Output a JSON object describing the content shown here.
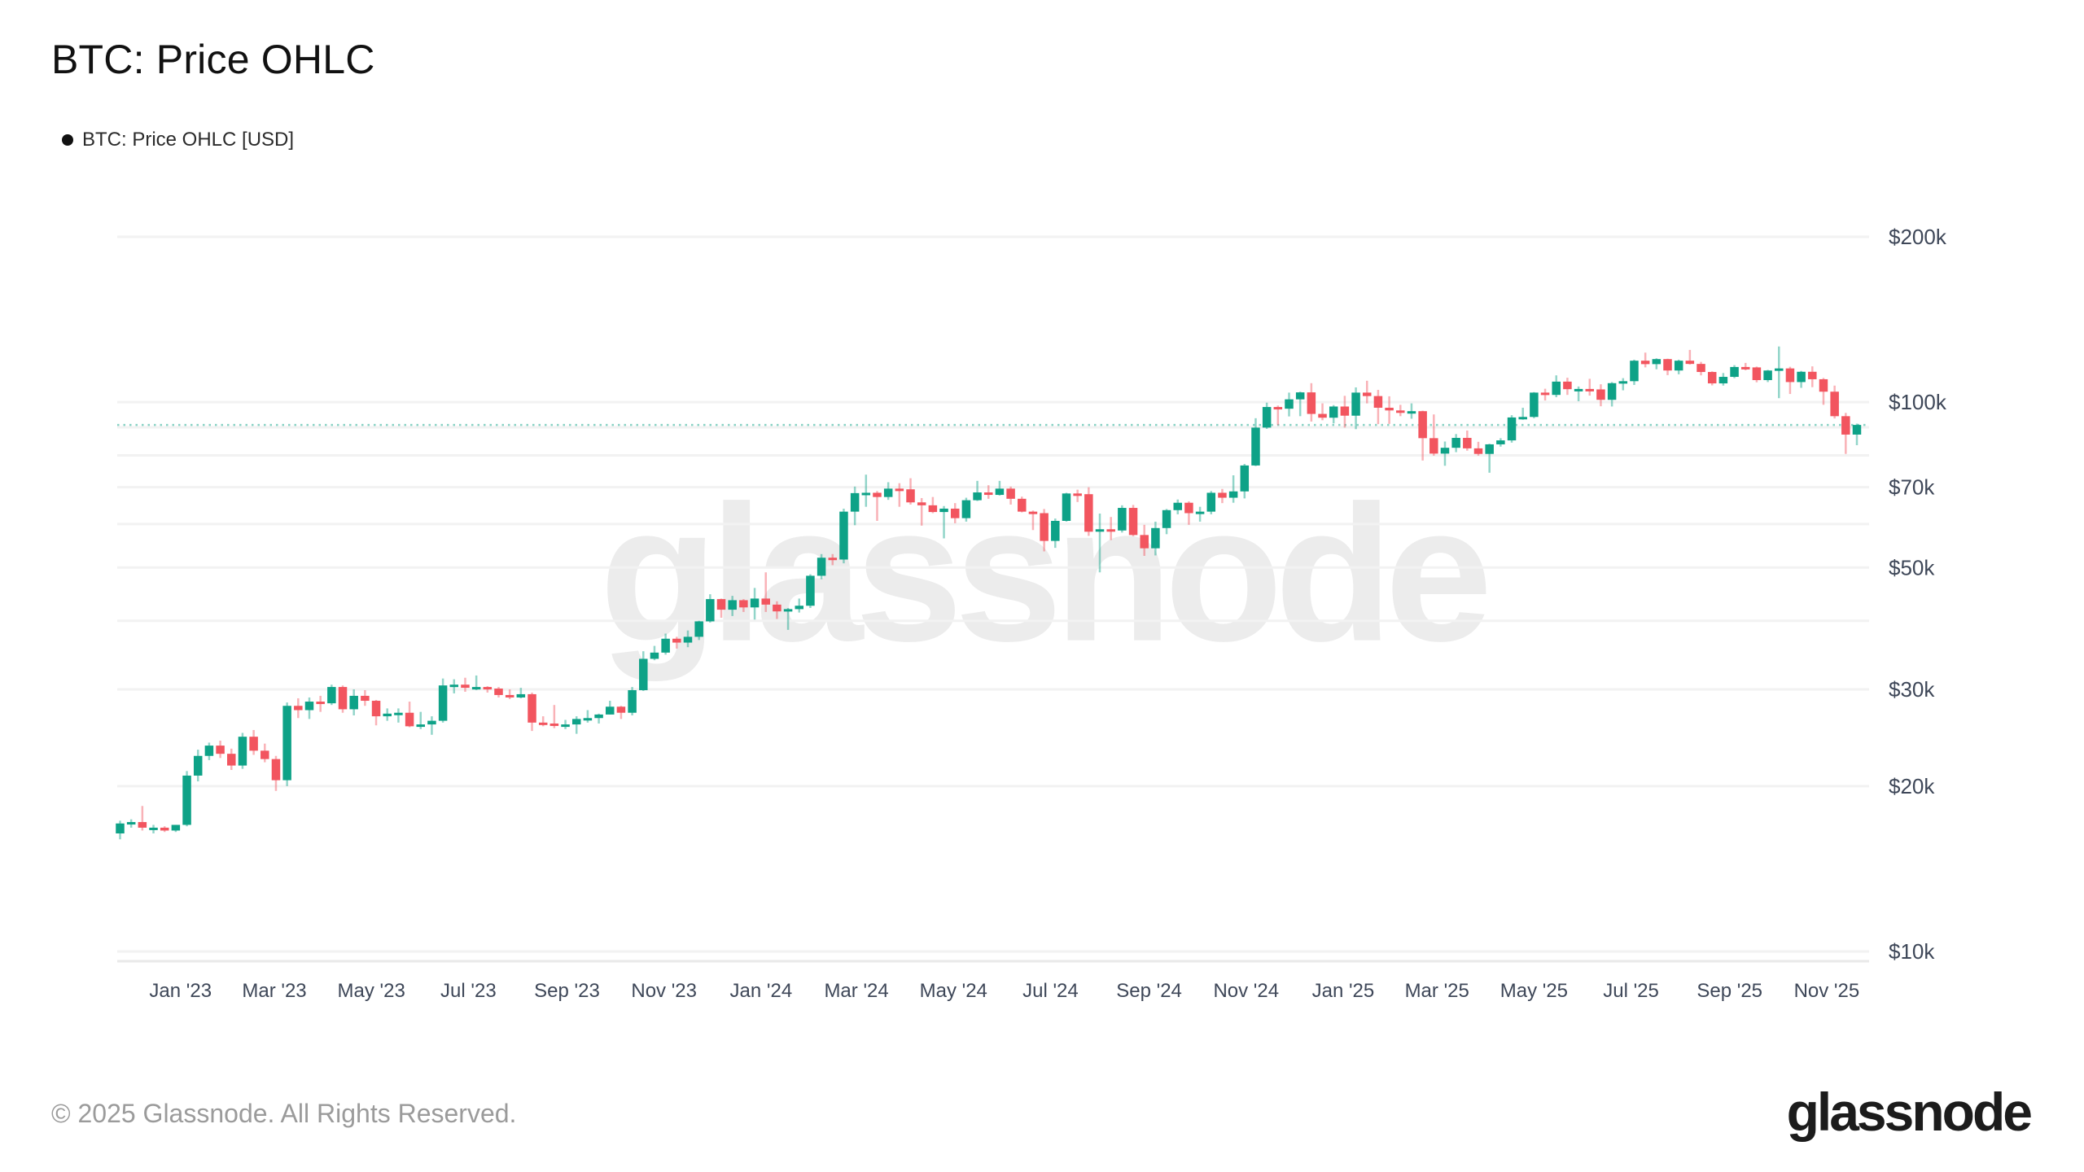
{
  "header": {
    "title": "BTC: Price OHLC"
  },
  "legend": {
    "label": "BTC: Price OHLC [USD]",
    "marker_color": "#111111"
  },
  "watermark": {
    "text": "glassnode"
  },
  "footer": {
    "copyright": "© 2025 Glassnode. All Rights Reserved.",
    "logo": "glassnode"
  },
  "chart_data": {
    "type": "candlestick",
    "title": "BTC: Price OHLC",
    "series_name": "BTC: Price OHLC [USD]",
    "interval": "weekly",
    "unit": "USD thousands",
    "y_axis": {
      "scale": "log",
      "ylim_thousands": [
        10,
        200
      ],
      "labeled_ticks": [
        {
          "value": 200,
          "label": "$200k"
        },
        {
          "value": 100,
          "label": "$100k"
        },
        {
          "value": 70,
          "label": "$70k"
        },
        {
          "value": 50,
          "label": "$50k"
        },
        {
          "value": 30,
          "label": "$30k"
        },
        {
          "value": 20,
          "label": "$20k"
        },
        {
          "value": 10,
          "label": "$10k"
        }
      ],
      "gridline_values": [
        10,
        20,
        30,
        40,
        50,
        60,
        70,
        80,
        90,
        100,
        200
      ]
    },
    "x_axis": {
      "tick_labels": [
        "Jan '23",
        "Mar '23",
        "May '23",
        "Jul '23",
        "Sep '23",
        "Nov '23",
        "Jan '24",
        "Mar '24",
        "May '24",
        "Jul '24",
        "Sep '24",
        "Nov '24",
        "Jan '25",
        "Mar '25",
        "May '25",
        "Jul '25",
        "Sep '25",
        "Nov '25"
      ]
    },
    "last_price_thousands": 90.9,
    "colors": {
      "up": "#0ea287",
      "down": "#f2555f",
      "grid": "#f2f2f2",
      "axis_line": "#e9e9e9",
      "last_price_line": "#14a68c",
      "tick_text": "#3e4758",
      "watermark": "#ececec"
    },
    "candles_ohlc_thousands": {
      "columns": [
        "week_start",
        "open",
        "high",
        "low",
        "close"
      ],
      "rows": [
        [
          "2022-11-28",
          16.4,
          17.3,
          16.0,
          17.1
        ],
        [
          "2022-12-05",
          17.1,
          17.4,
          16.8,
          17.2
        ],
        [
          "2022-12-12",
          17.2,
          18.4,
          16.6,
          16.8
        ],
        [
          "2022-12-19",
          16.8,
          17.0,
          16.4,
          16.8
        ],
        [
          "2022-12-26",
          16.8,
          16.9,
          16.5,
          16.6
        ],
        [
          "2023-01-02",
          16.6,
          17.0,
          16.5,
          17.0
        ],
        [
          "2023-01-09",
          17.0,
          21.3,
          16.9,
          20.9
        ],
        [
          "2023-01-16",
          20.9,
          23.3,
          20.4,
          22.7
        ],
        [
          "2023-01-23",
          22.7,
          24.0,
          22.3,
          23.7
        ],
        [
          "2023-01-30",
          23.7,
          24.2,
          22.5,
          22.9
        ],
        [
          "2023-02-06",
          22.9,
          23.4,
          21.4,
          21.8
        ],
        [
          "2023-02-13",
          21.8,
          25.0,
          21.5,
          24.6
        ],
        [
          "2023-02-20",
          24.6,
          25.3,
          22.8,
          23.2
        ],
        [
          "2023-02-27",
          23.2,
          23.9,
          22.1,
          22.4
        ],
        [
          "2023-03-06",
          22.4,
          22.7,
          19.6,
          20.5
        ],
        [
          "2023-03-13",
          20.5,
          28.4,
          20.0,
          28.0
        ],
        [
          "2023-03-20",
          28.0,
          28.9,
          26.6,
          27.5
        ],
        [
          "2023-03-27",
          27.5,
          29.0,
          26.5,
          28.5
        ],
        [
          "2023-04-03",
          28.5,
          29.2,
          27.3,
          28.3
        ],
        [
          "2023-04-10",
          28.3,
          30.6,
          28.1,
          30.3
        ],
        [
          "2023-04-17",
          30.3,
          30.5,
          27.2,
          27.6
        ],
        [
          "2023-04-24",
          27.6,
          30.0,
          26.9,
          29.2
        ],
        [
          "2023-05-01",
          29.2,
          29.9,
          28.0,
          28.6
        ],
        [
          "2023-05-08",
          28.6,
          28.7,
          25.8,
          26.8
        ],
        [
          "2023-05-15",
          26.8,
          27.7,
          26.3,
          27.1
        ],
        [
          "2023-05-22",
          27.1,
          27.7,
          26.1,
          27.2
        ],
        [
          "2023-05-29",
          27.2,
          28.5,
          25.6,
          25.7
        ],
        [
          "2023-06-05",
          25.7,
          27.3,
          25.4,
          25.9
        ],
        [
          "2023-06-12",
          25.9,
          26.8,
          24.8,
          26.3
        ],
        [
          "2023-06-19",
          26.3,
          31.4,
          26.1,
          30.5
        ],
        [
          "2023-06-26",
          30.5,
          31.3,
          29.5,
          30.6
        ],
        [
          "2023-07-03",
          30.6,
          31.5,
          29.7,
          30.2
        ],
        [
          "2023-07-10",
          30.2,
          31.8,
          29.9,
          30.3
        ],
        [
          "2023-07-17",
          30.3,
          30.4,
          29.6,
          30.1
        ],
        [
          "2023-07-24",
          30.1,
          30.3,
          29.0,
          29.3
        ],
        [
          "2023-07-31",
          29.3,
          30.0,
          28.8,
          29.0
        ],
        [
          "2023-08-07",
          29.0,
          30.2,
          28.9,
          29.4
        ],
        [
          "2023-08-14",
          29.4,
          29.6,
          25.2,
          26.1
        ],
        [
          "2023-08-21",
          26.1,
          26.8,
          25.7,
          26.0
        ],
        [
          "2023-08-28",
          26.0,
          28.1,
          25.5,
          25.9
        ],
        [
          "2023-09-04",
          25.9,
          26.4,
          25.4,
          25.9
        ],
        [
          "2023-09-11",
          25.9,
          26.8,
          24.9,
          26.5
        ],
        [
          "2023-09-18",
          26.5,
          27.5,
          26.1,
          26.6
        ],
        [
          "2023-09-25",
          26.6,
          27.1,
          26.0,
          27.0
        ],
        [
          "2023-10-02",
          27.0,
          28.6,
          27.0,
          27.9
        ],
        [
          "2023-10-09",
          27.9,
          28.0,
          26.5,
          27.2
        ],
        [
          "2023-10-16",
          27.2,
          30.3,
          26.9,
          29.9
        ],
        [
          "2023-10-23",
          29.9,
          35.2,
          29.8,
          34.1
        ],
        [
          "2023-10-30",
          34.1,
          36.0,
          33.9,
          35.0
        ],
        [
          "2023-11-06",
          35.0,
          37.9,
          34.7,
          37.1
        ],
        [
          "2023-11-13",
          37.1,
          37.4,
          35.6,
          36.5
        ],
        [
          "2023-11-20",
          36.5,
          38.4,
          35.8,
          37.4
        ],
        [
          "2023-11-27",
          37.4,
          40.0,
          36.9,
          39.9
        ],
        [
          "2023-12-04",
          39.9,
          44.7,
          39.7,
          43.8
        ],
        [
          "2023-12-11",
          43.8,
          43.9,
          40.5,
          41.9
        ],
        [
          "2023-12-18",
          41.9,
          44.4,
          40.8,
          43.6
        ],
        [
          "2023-12-25",
          43.6,
          43.8,
          41.5,
          42.3
        ],
        [
          "2024-01-01",
          42.3,
          45.9,
          40.2,
          43.9
        ],
        [
          "2024-01-08",
          43.9,
          49.0,
          41.5,
          42.8
        ],
        [
          "2024-01-15",
          42.8,
          43.4,
          40.3,
          41.6
        ],
        [
          "2024-01-22",
          41.6,
          42.2,
          38.5,
          42.0
        ],
        [
          "2024-01-29",
          42.0,
          43.9,
          41.4,
          42.6
        ],
        [
          "2024-02-05",
          42.6,
          48.6,
          42.2,
          48.3
        ],
        [
          "2024-02-12",
          48.3,
          52.9,
          47.6,
          52.1
        ],
        [
          "2024-02-19",
          52.1,
          52.9,
          50.5,
          51.7
        ],
        [
          "2024-02-26",
          51.7,
          64.0,
          50.9,
          63.2
        ],
        [
          "2024-03-04",
          63.2,
          70.2,
          59.7,
          68.3
        ],
        [
          "2024-03-11",
          68.3,
          73.8,
          64.5,
          68.4
        ],
        [
          "2024-03-18",
          68.4,
          68.9,
          60.8,
          67.2
        ],
        [
          "2024-03-25",
          67.2,
          71.5,
          66.4,
          69.6
        ],
        [
          "2024-04-01",
          69.6,
          71.2,
          64.5,
          69.4
        ],
        [
          "2024-04-08",
          69.4,
          72.7,
          65.1,
          65.7
        ],
        [
          "2024-04-15",
          65.7,
          66.9,
          59.6,
          64.9
        ],
        [
          "2024-04-22",
          64.9,
          67.2,
          62.8,
          63.1
        ],
        [
          "2024-04-29",
          63.1,
          64.7,
          56.5,
          64.0
        ],
        [
          "2024-05-06",
          64.0,
          65.5,
          60.2,
          61.5
        ],
        [
          "2024-05-13",
          61.5,
          67.0,
          60.6,
          66.3
        ],
        [
          "2024-05-20",
          66.3,
          71.9,
          66.1,
          68.5
        ],
        [
          "2024-05-27",
          68.5,
          70.6,
          66.7,
          67.8
        ],
        [
          "2024-06-03",
          67.8,
          71.9,
          67.6,
          69.6
        ],
        [
          "2024-06-10",
          69.6,
          70.2,
          65.1,
          66.7
        ],
        [
          "2024-06-17",
          66.7,
          67.3,
          63.0,
          63.2
        ],
        [
          "2024-06-24",
          63.2,
          63.5,
          58.5,
          62.8
        ],
        [
          "2024-07-01",
          62.8,
          63.9,
          53.5,
          55.9
        ],
        [
          "2024-07-08",
          55.9,
          61.4,
          54.3,
          60.8
        ],
        [
          "2024-07-15",
          60.8,
          68.4,
          60.6,
          68.2
        ],
        [
          "2024-07-22",
          68.2,
          69.3,
          65.8,
          68.0
        ],
        [
          "2024-07-29",
          68.0,
          70.0,
          57.1,
          58.1
        ],
        [
          "2024-08-05",
          58.1,
          62.7,
          49.0,
          58.7
        ],
        [
          "2024-08-12",
          58.7,
          61.8,
          56.1,
          58.4
        ],
        [
          "2024-08-19",
          58.4,
          64.9,
          57.9,
          64.2
        ],
        [
          "2024-08-26",
          64.2,
          65.0,
          57.0,
          57.3
        ],
        [
          "2024-09-02",
          57.3,
          59.8,
          52.5,
          54.2
        ],
        [
          "2024-09-09",
          54.2,
          60.6,
          52.6,
          59.0
        ],
        [
          "2024-09-16",
          59.0,
          63.9,
          57.5,
          63.6
        ],
        [
          "2024-09-23",
          63.6,
          66.5,
          62.5,
          65.6
        ],
        [
          "2024-09-30",
          65.6,
          66.0,
          59.8,
          62.8
        ],
        [
          "2024-10-07",
          62.8,
          64.5,
          60.6,
          63.2
        ],
        [
          "2024-10-14",
          63.2,
          68.9,
          62.5,
          68.4
        ],
        [
          "2024-10-21",
          68.4,
          69.5,
          65.5,
          67.0
        ],
        [
          "2024-10-28",
          67.0,
          73.6,
          65.6,
          68.8
        ],
        [
          "2024-11-04",
          68.8,
          77.2,
          66.8,
          76.7
        ],
        [
          "2024-11-11",
          76.7,
          93.5,
          76.5,
          89.9
        ],
        [
          "2024-11-18",
          89.9,
          99.8,
          89.4,
          98.0
        ],
        [
          "2024-11-25",
          98.0,
          98.6,
          90.8,
          97.3
        ],
        [
          "2024-12-02",
          97.3,
          104.1,
          94.2,
          101.2
        ],
        [
          "2024-12-09",
          101.2,
          104.5,
          94.3,
          104.2
        ],
        [
          "2024-12-16",
          104.2,
          108.3,
          92.2,
          95.2
        ],
        [
          "2024-12-23",
          95.2,
          99.5,
          92.7,
          93.7
        ],
        [
          "2024-12-30",
          93.7,
          98.8,
          91.5,
          98.2
        ],
        [
          "2025-01-06",
          98.2,
          102.7,
          89.9,
          94.5
        ],
        [
          "2025-01-13",
          94.5,
          106.4,
          89.3,
          104.1
        ],
        [
          "2025-01-20",
          104.1,
          109.4,
          99.5,
          102.6
        ],
        [
          "2025-01-27",
          102.6,
          105.3,
          91.2,
          97.7
        ],
        [
          "2025-02-03",
          97.7,
          102.5,
          91.3,
          96.6
        ],
        [
          "2025-02-10",
          96.6,
          98.9,
          94.3,
          96.1
        ],
        [
          "2025-02-17",
          96.1,
          99.5,
          93.3,
          96.3
        ],
        [
          "2025-02-24",
          96.3,
          96.5,
          78.3,
          86.0
        ],
        [
          "2025-03-03",
          86.0,
          95.0,
          79.9,
          80.6
        ],
        [
          "2025-03-10",
          80.6,
          84.8,
          76.6,
          82.6
        ],
        [
          "2025-03-17",
          82.6,
          87.5,
          81.1,
          86.1
        ],
        [
          "2025-03-24",
          86.1,
          88.8,
          81.6,
          82.4
        ],
        [
          "2025-03-31",
          82.4,
          84.7,
          79.9,
          80.5
        ],
        [
          "2025-04-07",
          80.5,
          84.0,
          74.4,
          83.8
        ],
        [
          "2025-04-14",
          83.8,
          86.0,
          83.0,
          85.2
        ],
        [
          "2025-04-21",
          85.2,
          94.7,
          84.4,
          93.8
        ],
        [
          "2025-04-28",
          93.8,
          97.7,
          92.9,
          94.0
        ],
        [
          "2025-05-05",
          94.0,
          104.3,
          93.5,
          104.1
        ],
        [
          "2025-05-12",
          104.1,
          105.8,
          100.7,
          103.1
        ],
        [
          "2025-05-19",
          103.1,
          111.9,
          102.1,
          109.0
        ],
        [
          "2025-05-26",
          109.0,
          110.8,
          103.1,
          105.6
        ],
        [
          "2025-06-02",
          105.6,
          106.8,
          100.4,
          105.7
        ],
        [
          "2025-06-09",
          105.7,
          110.3,
          102.8,
          105.5
        ],
        [
          "2025-06-16",
          105.5,
          107.8,
          98.3,
          101.0
        ],
        [
          "2025-06-23",
          101.0,
          108.8,
          98.2,
          108.3
        ],
        [
          "2025-06-30",
          108.3,
          110.6,
          105.1,
          109.2
        ],
        [
          "2025-07-07",
          109.2,
          119.5,
          107.5,
          119.0
        ],
        [
          "2025-07-14",
          119.0,
          123.1,
          115.7,
          117.3
        ],
        [
          "2025-07-21",
          117.3,
          120.2,
          114.8,
          119.8
        ],
        [
          "2025-07-28",
          119.8,
          120.0,
          112.0,
          114.2
        ],
        [
          "2025-08-04",
          114.2,
          119.5,
          112.4,
          119.0
        ],
        [
          "2025-08-11",
          119.0,
          124.5,
          117.1,
          117.4
        ],
        [
          "2025-08-18",
          117.4,
          118.4,
          111.9,
          113.5
        ],
        [
          "2025-08-25",
          113.5,
          113.8,
          107.3,
          108.2
        ],
        [
          "2025-09-01",
          108.2,
          113.0,
          107.2,
          111.2
        ],
        [
          "2025-09-08",
          111.2,
          116.8,
          110.6,
          115.9
        ],
        [
          "2025-09-15",
          115.9,
          117.9,
          114.3,
          115.7
        ],
        [
          "2025-09-22",
          115.7,
          116.1,
          108.7,
          109.7
        ],
        [
          "2025-09-29",
          109.7,
          114.5,
          108.8,
          114.2
        ],
        [
          "2025-10-06",
          114.2,
          126.3,
          101.7,
          115.2
        ],
        [
          "2025-10-13",
          115.2,
          116.0,
          103.5,
          108.8
        ],
        [
          "2025-10-20",
          108.8,
          114.0,
          106.2,
          113.6
        ],
        [
          "2025-10-27",
          113.6,
          116.2,
          106.5,
          110.1
        ],
        [
          "2025-11-03",
          110.1,
          110.7,
          98.9,
          104.5
        ],
        [
          "2025-11-10",
          104.5,
          107.2,
          93.4,
          94.3
        ],
        [
          "2025-11-17",
          94.3,
          95.6,
          80.5,
          87.3
        ],
        [
          "2025-11-24",
          87.3,
          91.4,
          83.5,
          90.9
        ]
      ]
    }
  }
}
